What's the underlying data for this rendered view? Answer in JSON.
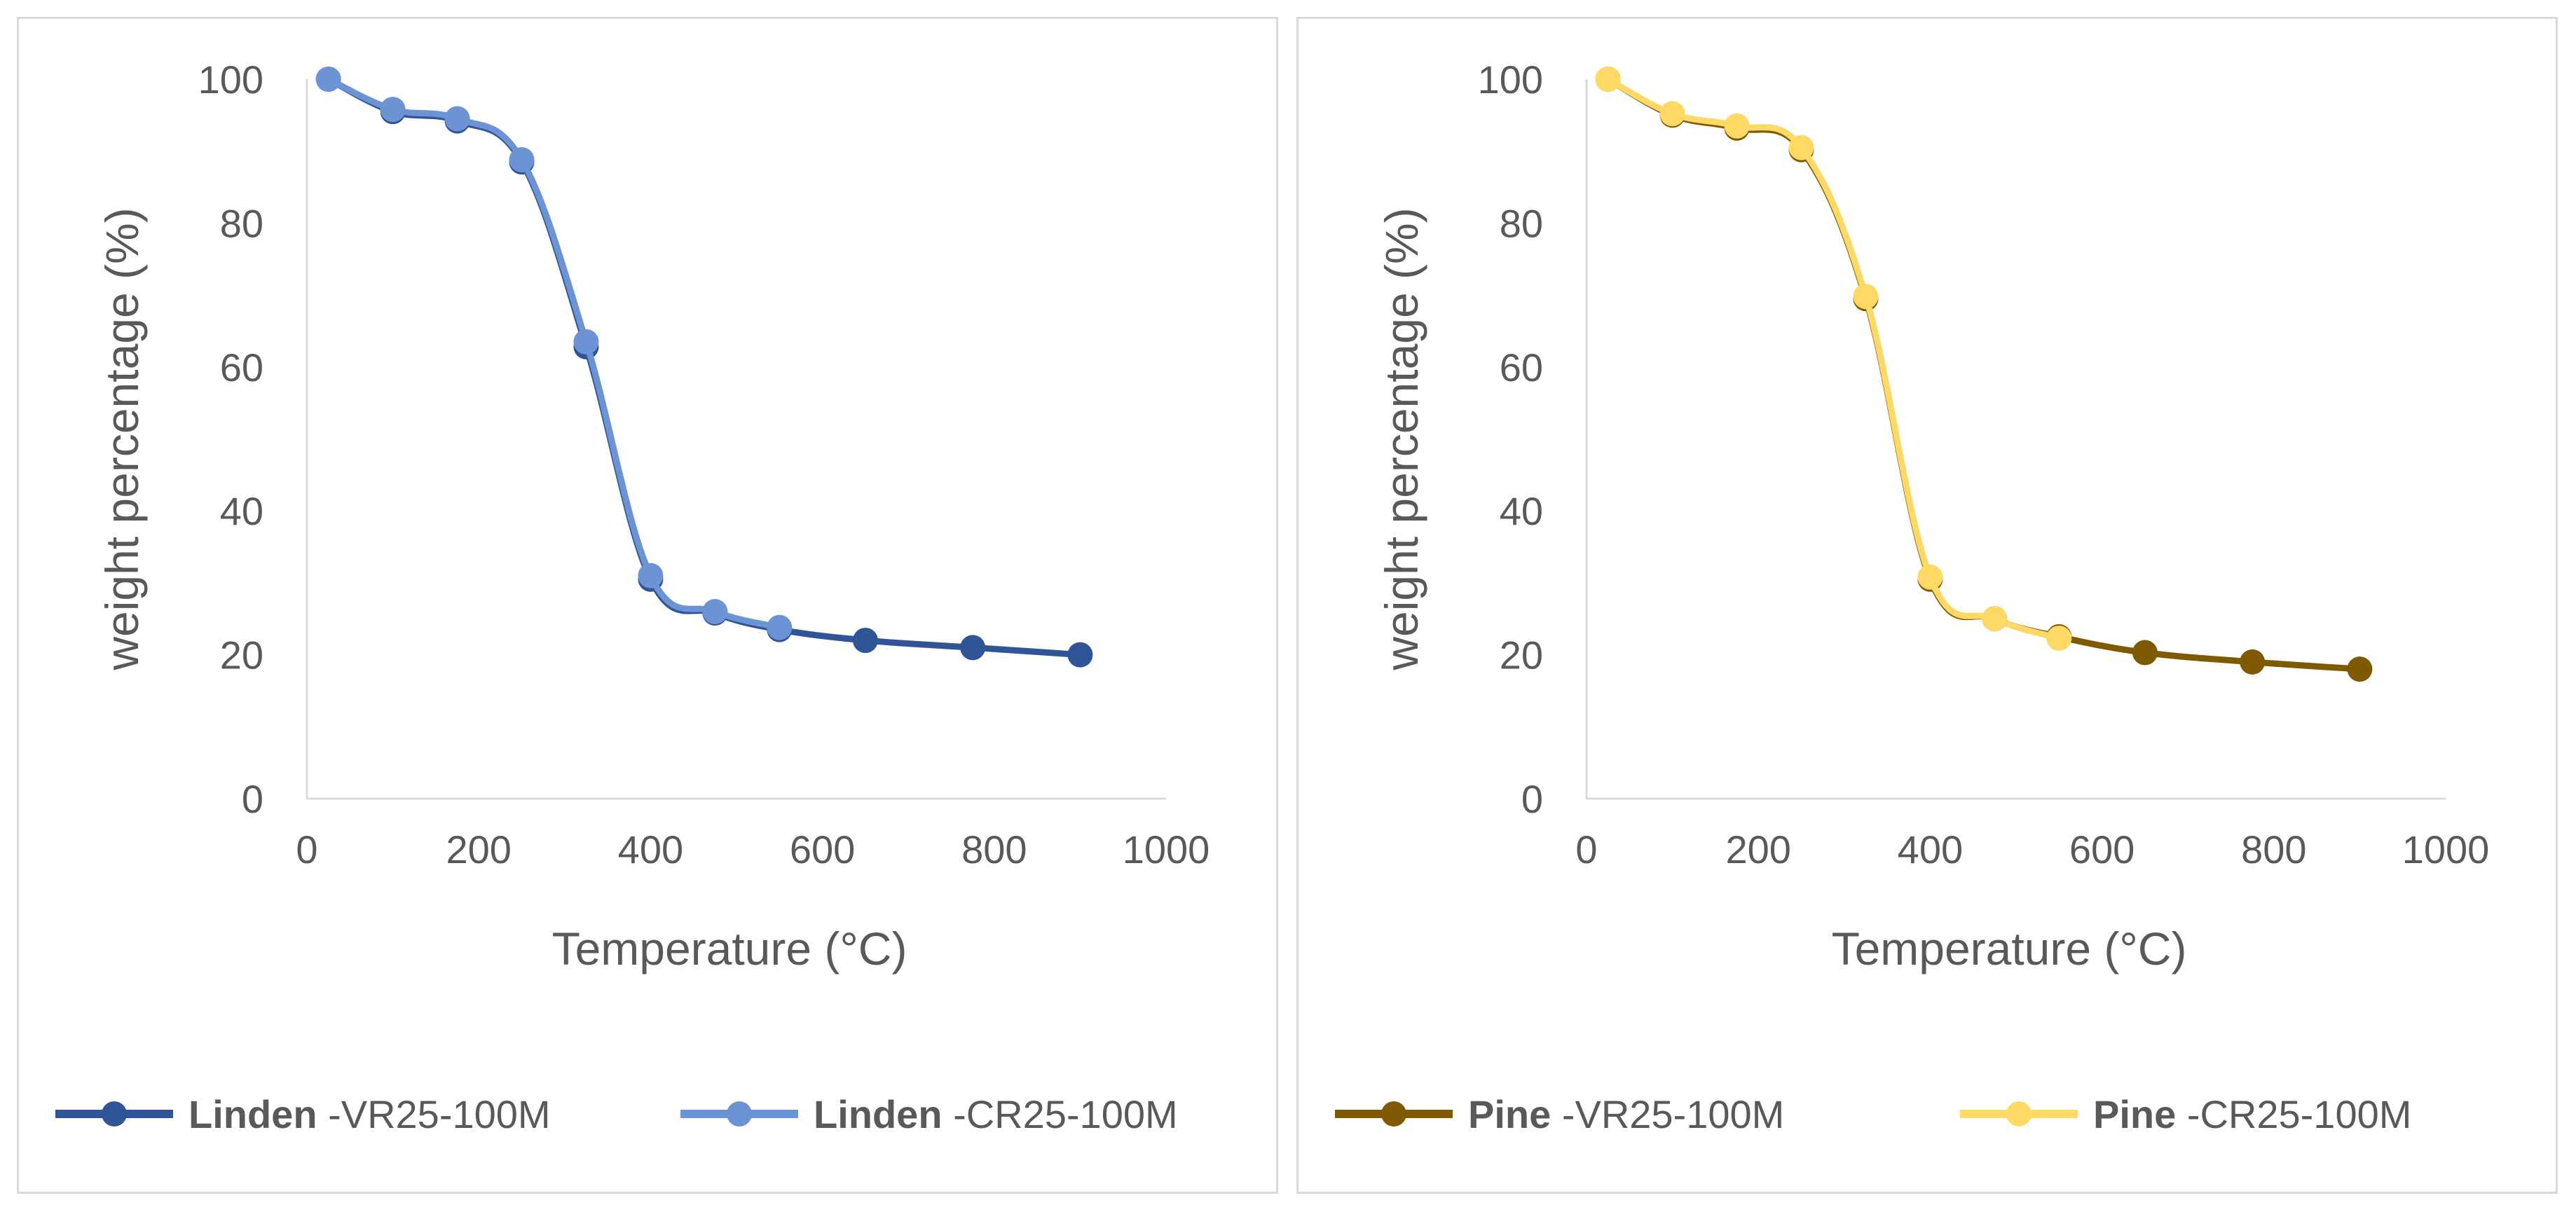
{
  "chart_data": [
    {
      "type": "line",
      "title": "",
      "xlabel": "Temperature (°C)",
      "ylabel": "weight percentage (%)",
      "xlim": [
        0,
        1000
      ],
      "ylim": [
        0,
        100
      ],
      "xticks": [
        0,
        200,
        400,
        600,
        800,
        1000
      ],
      "yticks": [
        0,
        20,
        40,
        60,
        80,
        100
      ],
      "x_tick_labels": [
        "0",
        "200",
        "400",
        "600",
        "800",
        "1000"
      ],
      "y_tick_labels": [
        "0",
        "20",
        "40",
        "60",
        "80",
        "100"
      ],
      "legend_position": "bottom",
      "series": [
        {
          "name": "Linden -VR25-100M",
          "name_bold": "Linden",
          "name_rest": " -VR25-100M",
          "color": "#2f5597",
          "x": [
            25,
            100,
            175,
            250,
            325,
            400,
            475,
            550,
            650,
            775,
            900
          ],
          "y": [
            100,
            95.5,
            94.2,
            88.5,
            62.8,
            30.5,
            25.8,
            23.5,
            22,
            21,
            20
          ]
        },
        {
          "name": "Linden -CR25-100M",
          "name_bold": "Linden",
          "name_rest": " -CR25-100M",
          "color": "#6c94d4",
          "x": [
            25,
            100,
            175,
            250,
            325,
            400,
            475,
            550
          ],
          "y": [
            100,
            95.8,
            94.5,
            88.8,
            63.5,
            31,
            26,
            23.8
          ]
        }
      ]
    },
    {
      "type": "line",
      "title": "",
      "xlabel": "Temperature (°C)",
      "ylabel": "weight percentage (%)",
      "xlim": [
        0,
        1000
      ],
      "ylim": [
        0,
        100
      ],
      "xticks": [
        0,
        200,
        400,
        600,
        800,
        1000
      ],
      "yticks": [
        0,
        20,
        40,
        60,
        80,
        100
      ],
      "x_tick_labels": [
        "0",
        "200",
        "400",
        "600",
        "800",
        "1000"
      ],
      "y_tick_labels": [
        "0",
        "20",
        "40",
        "60",
        "80",
        "100"
      ],
      "legend_position": "bottom",
      "series": [
        {
          "name": "Pine -VR25-100M",
          "name_bold": "Pine",
          "name_rest": " -VR25-100M",
          "color": "#7f5a00",
          "x": [
            25,
            100,
            175,
            250,
            325,
            400,
            475,
            550,
            650,
            775,
            900
          ],
          "y": [
            100,
            95,
            93.2,
            90.2,
            69.5,
            30.5,
            25,
            22.5,
            20.3,
            19,
            18
          ]
        },
        {
          "name": "Pine -CR25-100M",
          "name_bold": "Pine",
          "name_rest": " -CR25-100M",
          "color": "#ffd966",
          "x": [
            25,
            100,
            175,
            250,
            325,
            400,
            475,
            550
          ],
          "y": [
            100,
            95.2,
            93.5,
            90.5,
            69.8,
            30.8,
            25,
            22.3
          ]
        }
      ]
    }
  ]
}
